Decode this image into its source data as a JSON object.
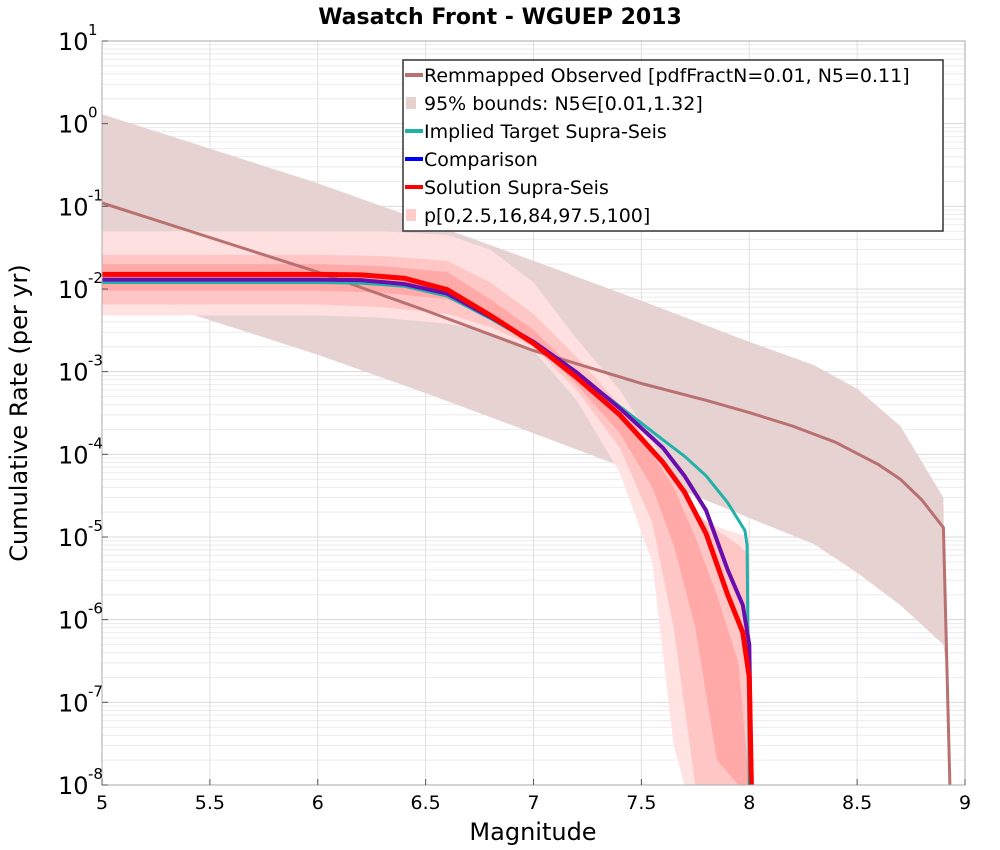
{
  "chart_data": {
    "type": "line",
    "title": "Wasatch Front - WGUEP 2013",
    "xlabel": "Magnitude",
    "ylabel": "Cumulative Rate (per yr)",
    "xlim": [
      5,
      9
    ],
    "ylim": [
      1e-08,
      10
    ],
    "yscale": "log",
    "grid": true,
    "legend_position": "top-right",
    "x_ticks": [
      "5",
      "5.5",
      "6",
      "6.5",
      "7",
      "7.5",
      "8",
      "8.5",
      "9"
    ],
    "y_ticks": [
      {
        "base": "10",
        "exp": "-8"
      },
      {
        "base": "10",
        "exp": "-7"
      },
      {
        "base": "10",
        "exp": "-6"
      },
      {
        "base": "10",
        "exp": "-5"
      },
      {
        "base": "10",
        "exp": "-4"
      },
      {
        "base": "10",
        "exp": "-3"
      },
      {
        "base": "10",
        "exp": "-2"
      },
      {
        "base": "10",
        "exp": "-1"
      },
      {
        "base": "10",
        "exp": "0"
      },
      {
        "base": "10",
        "exp": "1"
      }
    ],
    "legend": [
      {
        "label": "Remmapped Observed [pdfFractN=0.01, N5=0.11]",
        "color": "#b87070",
        "kind": "line"
      },
      {
        "label": "95% bounds: N5∈[0.01,1.32]",
        "color": "#e6d0d0",
        "kind": "patch"
      },
      {
        "label": "Implied Target Supra-Seis",
        "color": "#20b2aa",
        "kind": "line"
      },
      {
        "label": "Comparison",
        "color": "#0000ff",
        "kind": "line"
      },
      {
        "label": "Solution Supra-Seis",
        "color": "#ff0000",
        "kind": "line"
      },
      {
        "label": "p[0,2.5,16,84,97.5,100]",
        "color": "#ffcccc",
        "kind": "patch"
      }
    ],
    "bands": [
      {
        "name": "95% bounds: N5∈[0.01,1.32]",
        "color": "#e6d0d0",
        "x": [
          5.0,
          5.5,
          6.0,
          6.5,
          7.0,
          7.5,
          8.0,
          8.3,
          8.5,
          8.7,
          8.9,
          8.91
        ],
        "upper": [
          1.3,
          0.5,
          0.19,
          0.065,
          0.022,
          0.0072,
          0.0023,
          0.0012,
          0.00062,
          0.00022,
          3e-05,
          3e-07
        ],
        "lower": [
          0.011,
          0.0042,
          0.0016,
          0.00055,
          0.00018,
          5.8e-05,
          1.7e-05,
          8.2e-06,
          3.7e-06,
          1.5e-06,
          5e-07,
          3e-07
        ]
      },
      {
        "name": "p0-100",
        "color": "#ffe0e0",
        "x": [
          5.0,
          6.0,
          6.3,
          6.6,
          6.8,
          7.0,
          7.2,
          7.4,
          7.55,
          7.65,
          7.7,
          7.8,
          7.9,
          8.0
        ],
        "upper": [
          0.05,
          0.05,
          0.05,
          0.045,
          0.03,
          0.012,
          0.0025,
          0.0006,
          0.00015,
          5e-05,
          2e-05,
          1.5e-05,
          1.2e-05,
          1e-05
        ],
        "lower": [
          0.0048,
          0.0048,
          0.0045,
          0.0038,
          0.003,
          0.0018,
          0.00045,
          6e-05,
          5e-06,
          3e-08,
          1e-08,
          1e-08,
          1e-08,
          1e-08
        ]
      },
      {
        "name": "p2.5-97.5",
        "color": "#ffc4c4",
        "x": [
          5.0,
          6.0,
          6.3,
          6.6,
          6.8,
          7.0,
          7.2,
          7.4,
          7.55,
          7.65,
          7.75,
          7.85,
          7.95,
          8.0
        ],
        "upper": [
          0.026,
          0.026,
          0.025,
          0.022,
          0.012,
          0.005,
          0.0015,
          0.0004,
          0.00012,
          5e-05,
          2e-05,
          1.2e-05,
          8e-06,
          6e-06
        ],
        "lower": [
          0.0065,
          0.0065,
          0.006,
          0.005,
          0.0035,
          0.002,
          0.0006,
          0.00012,
          1.5e-05,
          8e-07,
          1e-08,
          1e-08,
          1e-08,
          1e-08
        ]
      },
      {
        "name": "p16-84",
        "color": "#ffa8a8",
        "x": [
          5.0,
          6.0,
          6.3,
          6.6,
          6.8,
          7.0,
          7.2,
          7.4,
          7.55,
          7.65,
          7.75,
          7.85,
          7.95,
          8.0
        ],
        "upper": [
          0.02,
          0.02,
          0.019,
          0.016,
          0.0075,
          0.0032,
          0.001,
          0.0003,
          0.0001,
          4e-05,
          1e-05,
          2e-06,
          3e-07,
          1e-08
        ],
        "lower": [
          0.0095,
          0.0095,
          0.009,
          0.0075,
          0.0045,
          0.0022,
          0.0007,
          0.00018,
          4e-05,
          8e-06,
          8e-07,
          2e-08,
          1e-08,
          1e-08
        ]
      }
    ],
    "series": [
      {
        "name": "Remmapped Observed [pdfFractN=0.01, N5=0.11]",
        "color": "#b87070",
        "width": 3,
        "x": [
          5.0,
          5.5,
          6.0,
          6.5,
          7.0,
          7.5,
          7.8,
          8.0,
          8.2,
          8.4,
          8.6,
          8.7,
          8.8,
          8.9,
          8.93
        ],
        "y": [
          0.11,
          0.042,
          0.016,
          0.0055,
          0.0018,
          0.00072,
          0.00045,
          0.00032,
          0.00022,
          0.00014,
          7.5e-05,
          5e-05,
          2.8e-05,
          1.3e-05,
          1e-08
        ]
      },
      {
        "name": "Implied Target Supra-Seis",
        "color": "#20b2aa",
        "width": 3,
        "x": [
          5.0,
          6.0,
          6.2,
          6.4,
          6.6,
          6.8,
          7.0,
          7.2,
          7.4,
          7.6,
          7.7,
          7.8,
          7.9,
          7.98,
          7.99,
          8.0
        ],
        "y": [
          0.012,
          0.012,
          0.0118,
          0.0108,
          0.0082,
          0.0044,
          0.0022,
          0.00095,
          0.00038,
          0.00015,
          9.5e-05,
          5.5e-05,
          2.6e-05,
          1.2e-05,
          8e-06,
          1e-08
        ]
      },
      {
        "name": "Comparison",
        "color": "#6a0dad",
        "width": 4,
        "x": [
          5.0,
          6.0,
          6.2,
          6.4,
          6.6,
          6.8,
          7.0,
          7.2,
          7.4,
          7.6,
          7.7,
          7.8,
          7.9,
          7.97,
          8.0,
          8.01
        ],
        "y": [
          0.013,
          0.013,
          0.0128,
          0.0115,
          0.0088,
          0.0046,
          0.0023,
          0.00098,
          0.00036,
          0.00012,
          5.5e-05,
          2.1e-05,
          4e-06,
          1.5e-06,
          5e-07,
          1e-08
        ]
      },
      {
        "name": "Solution Supra-Seis",
        "color": "#ff0000",
        "width": 5,
        "x": [
          5.0,
          6.0,
          6.2,
          6.4,
          6.6,
          6.8,
          7.0,
          7.2,
          7.4,
          7.6,
          7.7,
          7.8,
          7.9,
          7.97,
          8.0,
          8.01
        ],
        "y": [
          0.015,
          0.015,
          0.0148,
          0.0135,
          0.0098,
          0.0048,
          0.0022,
          0.00085,
          0.0003,
          8e-05,
          3.5e-05,
          1.1e-05,
          2e-06,
          7e-07,
          2e-07,
          1e-08
        ]
      }
    ]
  }
}
